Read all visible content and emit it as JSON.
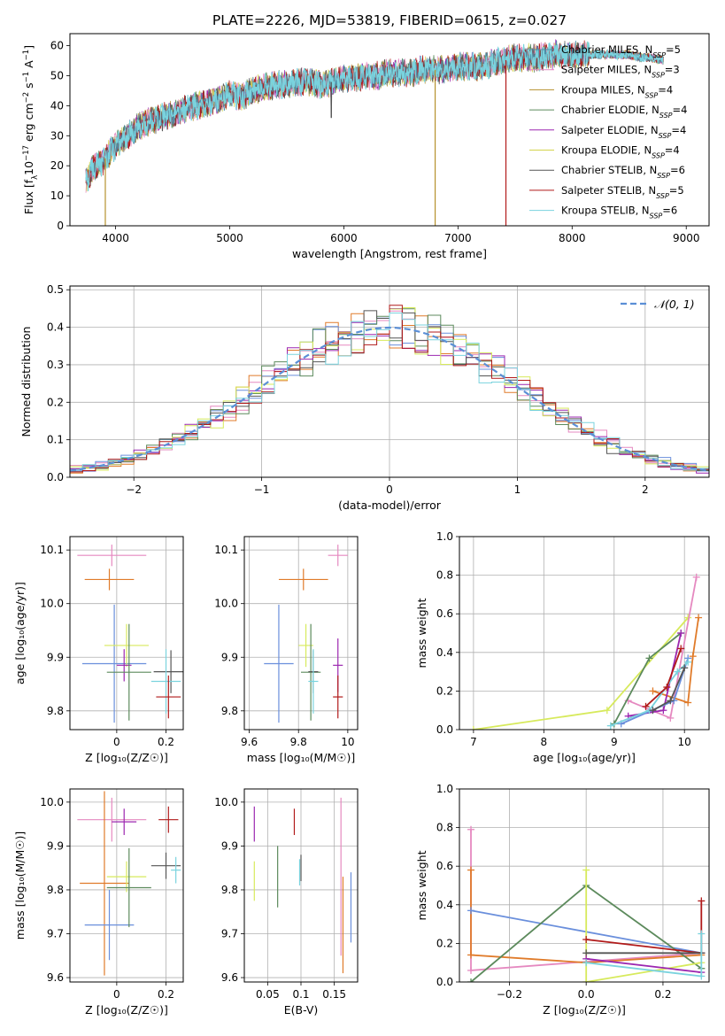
{
  "figure": {
    "title": "PLATE=2226, MJD=53819, FIBERID=0615, z=0.027"
  },
  "colors": {
    "chabrier_miles": "#4f8fa8",
    "salpeter_miles": "#e589c0",
    "kroupa_miles": "#b5912d",
    "chabrier_elodie": "#5c8a5c",
    "salpeter_elodie": "#9c27b0",
    "kroupa_elodie": "#d4d44c",
    "chabrier_stelib": "#555555",
    "salpeter_stelib": "#b11a1a",
    "kroupa_stelib": "#7ad3de",
    "blue": "#6a8fdc",
    "orange": "#e07b2a",
    "yellow": "#d7ea5c",
    "normal_curve": "#5b8fd6"
  },
  "chart_data": [
    {
      "id": "spectrum",
      "type": "line",
      "xlabel": "wavelength [Angstrom, rest frame]",
      "ylabel_parts": [
        "Flux [f",
        "λ",
        "10",
        "−17",
        " erg cm",
        "−2",
        " s",
        "−1",
        " A",
        "−1",
        "]"
      ],
      "xlim": [
        3600,
        9200
      ],
      "ylim": [
        0,
        64
      ],
      "xticks": [
        4000,
        5000,
        6000,
        7000,
        8000,
        9000
      ],
      "yticks": [
        0,
        10,
        20,
        30,
        40,
        50,
        60
      ],
      "grid": false,
      "legend_placement": "top-right",
      "continuum": {
        "x": [
          3740,
          3800,
          3900,
          4000,
          4100,
          4200,
          4300,
          4400,
          4500,
          4600,
          4700,
          4800,
          4900,
          5000,
          5100,
          5200,
          5300,
          5400,
          5500,
          5600,
          5700,
          5800,
          5900,
          6000,
          6100,
          6200,
          6300,
          6400,
          6500,
          6600,
          6700,
          6800,
          6900,
          7000,
          7100,
          7200,
          7300,
          7400,
          7500,
          7600,
          7700,
          7800,
          7900,
          8000,
          8100,
          8200,
          8300,
          8400,
          8500,
          8600,
          8700,
          8800
        ],
        "y": [
          15,
          19,
          22,
          27,
          30,
          33,
          35,
          36,
          37,
          39,
          40,
          41,
          42,
          44,
          43,
          45,
          46,
          47,
          47,
          48,
          48,
          47,
          48,
          49,
          49,
          50,
          50,
          51,
          51,
          51,
          52,
          52,
          52,
          53,
          53,
          53,
          54,
          55,
          56,
          56,
          56,
          57,
          57,
          57,
          57,
          57,
          57,
          57,
          57,
          56,
          56,
          55
        ]
      },
      "dips": [
        {
          "x": 3910,
          "y": 0,
          "series": "kroupa_miles"
        },
        {
          "x": 6800,
          "y": 0,
          "series": "kroupa_miles"
        },
        {
          "x": 7420,
          "y": 0,
          "series": "salpeter_stelib"
        },
        {
          "x": 5890,
          "y": 36,
          "series": "chabrier_stelib"
        }
      ],
      "series": [
        {
          "key": "chabrier_miles",
          "name_parts": [
            "Chabrier MILES, N",
            "SSP",
            "=5"
          ]
        },
        {
          "key": "salpeter_miles",
          "name_parts": [
            "Salpeter MILES, N",
            "SSP",
            "=3"
          ]
        },
        {
          "key": "kroupa_miles",
          "name_parts": [
            "Kroupa MILES, N",
            "SSP",
            "=4"
          ]
        },
        {
          "key": "chabrier_elodie",
          "name_parts": [
            "Chabrier ELODIE, N",
            "SSP",
            "=4"
          ]
        },
        {
          "key": "salpeter_elodie",
          "name_parts": [
            "Salpeter ELODIE, N",
            "SSP",
            "=4"
          ]
        },
        {
          "key": "kroupa_elodie",
          "name_parts": [
            "Kroupa ELODIE, N",
            "SSP",
            "=4"
          ]
        },
        {
          "key": "chabrier_stelib",
          "name_parts": [
            "Chabrier STELIB, N",
            "SSP",
            "=6"
          ]
        },
        {
          "key": "salpeter_stelib",
          "name_parts": [
            "Salpeter STELIB, N",
            "SSP",
            "=5"
          ]
        },
        {
          "key": "kroupa_stelib",
          "name_parts": [
            "Kroupa STELIB, N",
            "SSP",
            "=6"
          ]
        }
      ]
    },
    {
      "id": "residuals",
      "type": "histogram",
      "xlabel": "(data-model)/error",
      "ylabel": "Normed distribution",
      "xlim": [
        -2.5,
        2.5
      ],
      "ylim": [
        0,
        0.51
      ],
      "xticks": [
        -2,
        -1,
        0,
        1,
        2
      ],
      "xtick_labels": [
        "−2",
        "−1",
        "0",
        "1",
        "2"
      ],
      "yticks": [
        0.0,
        0.1,
        0.2,
        0.3,
        0.4,
        0.5
      ],
      "ytick_labels": [
        "0.0",
        "0.1",
        "0.2",
        "0.3",
        "0.4",
        "0.5"
      ],
      "grid": true,
      "legend_placement": "top-right",
      "normal_label": "𝒩(0, 1)",
      "bin_width": 0.1
    },
    {
      "id": "age_vs_Z",
      "type": "errorbar",
      "xlabel": "Z [log₁₀(Z/Z☉)]",
      "ylabel": "age  [log₁₀(age/yr)]",
      "xlim": [
        -0.19,
        0.27
      ],
      "ylim": [
        9.765,
        10.125
      ],
      "xticks": [
        0.0,
        0.2
      ],
      "yticks": [
        9.8,
        9.9,
        10.0,
        10.1
      ],
      "grid": true,
      "points": [
        {
          "series": "salpeter_miles",
          "x": -0.02,
          "xerr": 0.14,
          "y": 10.09,
          "yerr": 0.02
        },
        {
          "series": "orange",
          "x": -0.03,
          "xerr": 0.1,
          "y": 10.045,
          "yerr": 0.02
        },
        {
          "series": "blue",
          "x": -0.01,
          "xerr": 0.13,
          "y": 9.888,
          "yerr": 0.11
        },
        {
          "series": "yellow",
          "x": 0.04,
          "xerr": 0.09,
          "y": 9.922,
          "yerr": 0.04
        },
        {
          "series": "salpeter_elodie",
          "x": 0.03,
          "xerr": 0.03,
          "y": 9.885,
          "yerr": 0.03
        },
        {
          "series": "chabrier_elodie",
          "x": 0.05,
          "xerr": 0.09,
          "y": 9.872,
          "yerr": 0.09
        },
        {
          "series": "chabrier_stelib",
          "x": 0.22,
          "xerr": 0.07,
          "y": 9.873,
          "yerr": 0.04
        },
        {
          "series": "kroupa_stelib",
          "x": 0.2,
          "xerr": 0.06,
          "y": 9.855,
          "yerr": 0.06
        },
        {
          "series": "salpeter_stelib",
          "x": 0.21,
          "xerr": 0.05,
          "y": 9.826,
          "yerr": 0.04
        }
      ]
    },
    {
      "id": "age_vs_mass",
      "type": "errorbar",
      "xlabel": "mass [log₁₀(M/M☉)]",
      "ylabel": "",
      "xlim": [
        9.58,
        10.04
      ],
      "ylim": [
        9.765,
        10.125
      ],
      "xticks": [
        9.6,
        9.8,
        10.0
      ],
      "yticks": [
        9.8,
        9.9,
        10.0,
        10.1
      ],
      "grid": true,
      "points": [
        {
          "series": "salpeter_miles",
          "x": 9.96,
          "xerr": 0.04,
          "y": 10.09,
          "yerr": 0.02
        },
        {
          "series": "orange",
          "x": 9.82,
          "xerr": 0.1,
          "y": 10.045,
          "yerr": 0.02
        },
        {
          "series": "blue",
          "x": 9.72,
          "xerr": 0.06,
          "y": 9.888,
          "yerr": 0.11
        },
        {
          "series": "yellow",
          "x": 9.83,
          "xerr": 0.03,
          "y": 9.922,
          "yerr": 0.04
        },
        {
          "series": "salpeter_elodie",
          "x": 9.96,
          "xerr": 0.02,
          "y": 9.885,
          "yerr": 0.05
        },
        {
          "series": "chabrier_elodie",
          "x": 9.85,
          "xerr": 0.04,
          "y": 9.872,
          "yerr": 0.09
        },
        {
          "series": "chabrier_stelib",
          "x": 9.86,
          "xerr": 0.02,
          "y": 9.873,
          "yerr": 0.04
        },
        {
          "series": "kroupa_stelib",
          "x": 9.86,
          "xerr": 0.02,
          "y": 9.855,
          "yerr": 0.06
        },
        {
          "series": "salpeter_stelib",
          "x": 9.96,
          "xerr": 0.02,
          "y": 9.826,
          "yerr": 0.04
        }
      ]
    },
    {
      "id": "weight_vs_age",
      "type": "line",
      "xlabel": "age  [log₁₀(age/yr)]",
      "ylabel": "mass weight",
      "xlim": [
        6.8,
        10.35
      ],
      "ylim": [
        0,
        1
      ],
      "xticks": [
        7,
        8,
        9,
        10
      ],
      "yticks": [
        0.0,
        0.2,
        0.4,
        0.6,
        0.8,
        1.0
      ],
      "grid": true,
      "series": [
        {
          "key": "yellow",
          "x": [
            7.0,
            8.9,
            10.05
          ],
          "y": [
            0.0,
            0.1,
            0.58
          ]
        },
        {
          "key": "salpeter_miles",
          "x": [
            9.2,
            9.8,
            10.17
          ],
          "y": [
            0.15,
            0.06,
            0.79
          ]
        },
        {
          "key": "orange",
          "x": [
            9.55,
            10.05,
            10.12,
            10.2
          ],
          "y": [
            0.2,
            0.14,
            0.38,
            0.58
          ]
        },
        {
          "key": "chabrier_elodie",
          "x": [
            9.0,
            9.5,
            9.95
          ],
          "y": [
            0.03,
            0.37,
            0.5
          ]
        },
        {
          "key": "salpeter_elodie",
          "x": [
            9.2,
            9.7,
            9.95
          ],
          "y": [
            0.07,
            0.1,
            0.5
          ]
        },
        {
          "key": "blue",
          "x": [
            9.1,
            9.85,
            10.05
          ],
          "y": [
            0.03,
            0.15,
            0.37
          ]
        },
        {
          "key": "kroupa_stelib",
          "x": [
            8.95,
            9.5,
            9.9,
            10.05
          ],
          "y": [
            0.02,
            0.1,
            0.3,
            0.35
          ]
        },
        {
          "key": "salpeter_stelib",
          "x": [
            9.45,
            9.75,
            9.95
          ],
          "y": [
            0.12,
            0.22,
            0.42
          ]
        },
        {
          "key": "chabrier_stelib",
          "x": [
            9.55,
            9.8,
            10.0
          ],
          "y": [
            0.1,
            0.15,
            0.32
          ]
        }
      ]
    },
    {
      "id": "mass_vs_Z",
      "type": "errorbar",
      "xlabel": "Z [log₁₀(Z/Z☉)]",
      "ylabel": "mass [log₁₀(M/M☉)]",
      "xlim": [
        -0.19,
        0.27
      ],
      "ylim": [
        9.59,
        10.03
      ],
      "xticks": [
        0.0,
        0.2
      ],
      "yticks": [
        9.6,
        9.7,
        9.8,
        9.9,
        10.0
      ],
      "grid": true,
      "points": [
        {
          "series": "salpeter_miles",
          "x": -0.02,
          "xerr": 0.14,
          "y": 9.96,
          "yerr": 0.05
        },
        {
          "series": "orange",
          "x": -0.05,
          "xerr": 0.1,
          "y": 9.815,
          "yerr": 0.21
        },
        {
          "series": "blue",
          "x": -0.03,
          "xerr": 0.1,
          "y": 9.72,
          "yerr": 0.08
        },
        {
          "series": "yellow",
          "x": 0.04,
          "xerr": 0.08,
          "y": 9.83,
          "yerr": 0.035
        },
        {
          "series": "salpeter_elodie",
          "x": 0.03,
          "xerr": 0.05,
          "y": 9.955,
          "yerr": 0.03
        },
        {
          "series": "chabrier_elodie",
          "x": 0.05,
          "xerr": 0.09,
          "y": 9.805,
          "yerr": 0.09
        },
        {
          "series": "chabrier_stelib",
          "x": 0.2,
          "xerr": 0.06,
          "y": 9.855,
          "yerr": 0.03
        },
        {
          "series": "kroupa_stelib",
          "x": 0.24,
          "xerr": 0.02,
          "y": 9.845,
          "yerr": 0.03
        },
        {
          "series": "salpeter_stelib",
          "x": 0.21,
          "xerr": 0.04,
          "y": 9.96,
          "yerr": 0.03
        }
      ]
    },
    {
      "id": "mass_vs_ebv",
      "type": "errorbar",
      "xlabel": "E(B-V)",
      "ylabel": "",
      "xlim": [
        0.015,
        0.185
      ],
      "ylim": [
        9.59,
        10.03
      ],
      "xticks": [
        0.05,
        0.1,
        0.15
      ],
      "yticks": [
        9.6,
        9.7,
        9.8,
        9.9,
        10.0
      ],
      "grid": true,
      "points": [
        {
          "series": "salpeter_elodie",
          "x": 0.03,
          "xerr": 0,
          "y": 9.95,
          "yerr": 0.04
        },
        {
          "series": "yellow",
          "x": 0.03,
          "xerr": 0,
          "y": 9.82,
          "yerr": 0.045
        },
        {
          "series": "chabrier_elodie",
          "x": 0.065,
          "xerr": 0,
          "y": 9.83,
          "yerr": 0.07
        },
        {
          "series": "salpeter_stelib",
          "x": 0.09,
          "xerr": 0,
          "y": 9.955,
          "yerr": 0.03
        },
        {
          "series": "kroupa_stelib",
          "x": 0.098,
          "xerr": 0,
          "y": 9.84,
          "yerr": 0.03
        },
        {
          "series": "chabrier_stelib",
          "x": 0.1,
          "xerr": 0,
          "y": 9.85,
          "yerr": 0.03
        },
        {
          "series": "salpeter_miles",
          "x": 0.16,
          "xerr": 0,
          "y": 9.83,
          "yerr": 0.18
        },
        {
          "series": "orange",
          "x": 0.163,
          "xerr": 0,
          "y": 9.72,
          "yerr": 0.11
        },
        {
          "series": "blue",
          "x": 0.175,
          "xerr": 0,
          "y": 9.76,
          "yerr": 0.08
        }
      ]
    },
    {
      "id": "weight_vs_Z",
      "type": "line",
      "xlabel": "Z [log₁₀(Z/Z☉)]",
      "ylabel": "mass weight",
      "xlim": [
        -0.33,
        0.32
      ],
      "ylim": [
        0,
        1
      ],
      "xticks": [
        -0.2,
        0.0,
        0.2
      ],
      "xtick_labels": [
        "−0.2",
        "0.0",
        "0.2"
      ],
      "yticks": [
        0.0,
        0.2,
        0.4,
        0.6,
        0.8,
        1.0
      ],
      "grid": true,
      "series": [
        {
          "key": "salpeter_miles",
          "x": [
            -0.3,
            -0.3,
            0.3
          ],
          "y": [
            0.79,
            0.06,
            0.15
          ]
        },
        {
          "key": "orange",
          "x": [
            -0.3,
            -0.3,
            0.0,
            0.3
          ],
          "y": [
            0.58,
            0.14,
            0.1,
            0.14
          ]
        },
        {
          "key": "blue",
          "x": [
            -0.3,
            0.3
          ],
          "y": [
            0.37,
            0.15
          ]
        },
        {
          "key": "chabrier_elodie",
          "x": [
            -0.3,
            0.0,
            0.3
          ],
          "y": [
            0.0,
            0.5,
            0.07
          ]
        },
        {
          "key": "yellow",
          "x": [
            0.0,
            0.0,
            0.3
          ],
          "y": [
            0.58,
            0.0,
            0.1
          ]
        },
        {
          "key": "salpeter_stelib",
          "x": [
            0.0,
            0.3,
            0.3
          ],
          "y": [
            0.22,
            0.15,
            0.42
          ]
        },
        {
          "key": "chabrier_stelib",
          "x": [
            0.0,
            0.3
          ],
          "y": [
            0.15,
            0.15
          ]
        },
        {
          "key": "salpeter_elodie",
          "x": [
            0.0,
            0.3
          ],
          "y": [
            0.12,
            0.05
          ]
        },
        {
          "key": "kroupa_stelib",
          "x": [
            0.0,
            0.3,
            0.3
          ],
          "y": [
            0.1,
            0.03,
            0.25
          ]
        }
      ]
    }
  ]
}
